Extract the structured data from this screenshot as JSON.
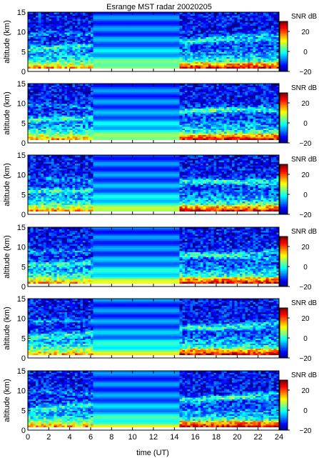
{
  "title": "Esrange MST radar 20020205",
  "chart_data": {
    "type": "heatmap",
    "title": "Esrange MST radar 20020205",
    "xlabel": "time (UT)",
    "ylabel": "altitude (km)",
    "xlim": [
      0,
      24
    ],
    "ylim": [
      0,
      15
    ],
    "xticks": [
      "0",
      "2",
      "4",
      "6",
      "8",
      "10",
      "12",
      "14",
      "16",
      "18",
      "20",
      "22",
      "24"
    ],
    "yticks": [
      "0",
      "5",
      "10",
      "15"
    ],
    "colorbar": {
      "label": "SNR dB",
      "range": [
        -20,
        30
      ],
      "ticks": [
        "20",
        "0",
        "−20"
      ],
      "colormap": "jet"
    },
    "data_gap": [
      6.3,
      14.4
    ],
    "panels": [
      {
        "panel": 1,
        "quantity": "SNR"
      },
      {
        "panel": 2,
        "quantity": "SNR"
      },
      {
        "panel": 3,
        "quantity": "SNR"
      },
      {
        "panel": 4,
        "quantity": "SNR"
      },
      {
        "panel": 5,
        "quantity": "SNR"
      },
      {
        "panel": 6,
        "quantity": "SNR"
      }
    ]
  }
}
